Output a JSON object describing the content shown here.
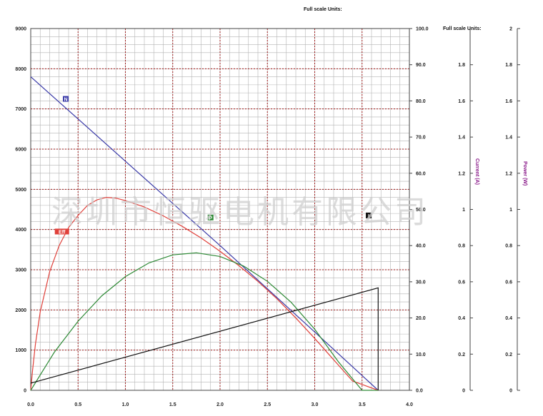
{
  "chart_data": {
    "type": "line",
    "headers": {
      "top": "Full scale Units:",
      "right_axes": "Full scale Units:"
    },
    "watermark": "深圳市恒驱电机有限公司",
    "x": {
      "range": [
        0,
        4.0
      ],
      "ticks": [
        "0.0",
        "0.5",
        "1.0",
        "1.5",
        "2.0",
        "2.5",
        "3.0",
        "3.5",
        "4.0"
      ]
    },
    "axes": {
      "left": {
        "range": [
          0,
          9000
        ],
        "ticks": [
          "0",
          "1000",
          "2000",
          "3000",
          "4000",
          "5000",
          "6000",
          "7000",
          "8000",
          "9000"
        ]
      },
      "right1": {
        "range": [
          0,
          100
        ],
        "ticks": [
          "0.0",
          "10.0",
          "20.0",
          "30.0",
          "40.0",
          "50.0",
          "60.0",
          "70.0",
          "80.0",
          "90.0",
          "100.0"
        ]
      },
      "right2": {
        "range": [
          0,
          2
        ],
        "ticks": [
          "0",
          "0.2",
          "0.4",
          "0.6",
          "0.8",
          "1",
          "1.2",
          "1.4",
          "1.6",
          "1.8"
        ],
        "label": "Current (A)"
      },
      "right3": {
        "range": [
          0,
          2
        ],
        "ticks": [
          "0",
          "0.2",
          "0.4",
          "0.6",
          "0.8",
          "1",
          "1.2",
          "1.4",
          "1.6",
          "1.8",
          "2"
        ],
        "label": "Power (W)"
      }
    },
    "grid": true,
    "series": [
      {
        "marker": "N",
        "color": "#3a3aa8",
        "marker_at": [
          0.37,
          7250
        ],
        "x": [
          0.0,
          1.0,
          2.0,
          3.0,
          3.67
        ],
        "y": [
          7800,
          5700,
          3600,
          1450,
          0
        ]
      },
      {
        "marker": "Eff",
        "color": "#e0403a",
        "marker_at": [
          0.33,
          3950
        ],
        "x": [
          0.0,
          0.02,
          0.05,
          0.1,
          0.2,
          0.3,
          0.4,
          0.5,
          0.6,
          0.7,
          0.8,
          0.9,
          1.0,
          1.2,
          1.4,
          1.6,
          1.8,
          2.0,
          2.2,
          2.4,
          2.6,
          2.8,
          3.0,
          3.2,
          3.4,
          3.67
        ],
        "y": [
          0,
          500,
          1150,
          1950,
          2950,
          3600,
          4050,
          4350,
          4600,
          4740,
          4800,
          4780,
          4720,
          4560,
          4340,
          4080,
          3790,
          3460,
          3100,
          2710,
          2280,
          1800,
          1290,
          760,
          230,
          0
        ]
      },
      {
        "marker": "P",
        "color": "#2e8a36",
        "marker_at": [
          1.9,
          4300
        ],
        "x": [
          0.0,
          0.25,
          0.5,
          0.75,
          1.0,
          1.25,
          1.5,
          1.75,
          2.0,
          2.25,
          2.5,
          2.75,
          3.0,
          3.25,
          3.5,
          3.67
        ],
        "y": [
          0,
          950,
          1720,
          2350,
          2830,
          3170,
          3370,
          3420,
          3330,
          3090,
          2710,
          2190,
          1520,
          710,
          0,
          0
        ]
      },
      {
        "marker": "I",
        "color": "#111111",
        "marker_at": [
          3.57,
          4350
        ],
        "x": [
          0.0,
          3.67,
          3.67
        ],
        "y": [
          180,
          2550,
          0
        ]
      }
    ]
  }
}
